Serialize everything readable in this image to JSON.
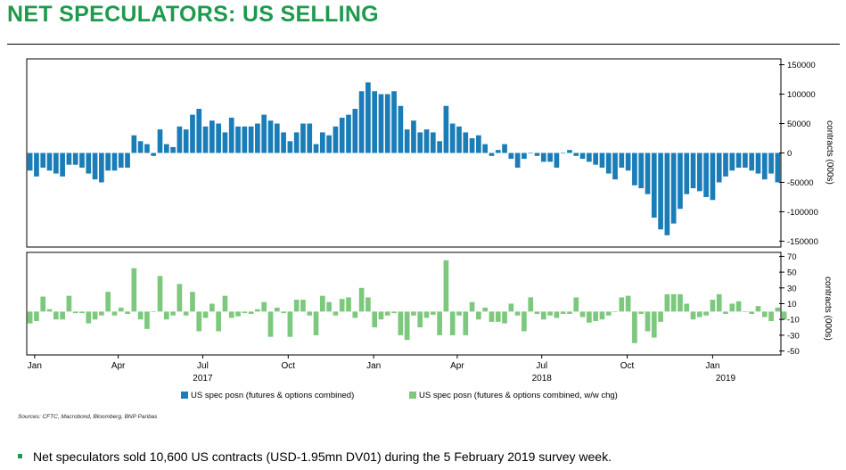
{
  "page": {
    "title": "NET SPECULATORS: US SELLING",
    "sources": "Sources: CFTC, Macrobond, Bloomberg, BNP Paribas",
    "bullet": "Net speculators sold 10,600 US contracts (USD-1.95mn DV01) during the 5 February 2019 survey week."
  },
  "colors": {
    "title": "#1d9a4c",
    "position_bars": "#1a7db8",
    "change_bars": "#7cc97e"
  },
  "chart_data": [
    {
      "type": "bar",
      "panel": "top",
      "x_start": "2016-12-27",
      "x_step_days": 7,
      "ylabel": "contracts (000s)",
      "ylim": [
        -160000,
        160000
      ],
      "yticks": [
        -150000,
        -100000,
        -50000,
        0,
        50000,
        100000,
        150000
      ],
      "ytick_labels": [
        "-150000",
        "-100000",
        "-50000",
        "0",
        "50000",
        "100000",
        "150000"
      ],
      "series": [
        {
          "name": "US spec posn (futures & options combined)",
          "values": [
            -30000,
            -40000,
            -25000,
            -30000,
            -35000,
            -40000,
            -20000,
            -20000,
            -25000,
            -35000,
            -45000,
            -50000,
            -30000,
            -30000,
            -25000,
            -25000,
            30000,
            20000,
            15000,
            -5000,
            40000,
            15000,
            10000,
            45000,
            40000,
            65000,
            75000,
            45000,
            55000,
            50000,
            35000,
            60000,
            45000,
            45000,
            45000,
            50000,
            65000,
            55000,
            50000,
            35000,
            20000,
            35000,
            50000,
            50000,
            15000,
            35000,
            30000,
            45000,
            60000,
            65000,
            75000,
            105000,
            120000,
            105000,
            100000,
            100000,
            105000,
            80000,
            40000,
            55000,
            35000,
            40000,
            35000,
            20000,
            80000,
            50000,
            45000,
            35000,
            25000,
            30000,
            15000,
            -5000,
            5000,
            15000,
            -10000,
            -25000,
            -10000,
            0,
            -5000,
            -15000,
            -15000,
            -25000,
            0,
            5000,
            -5000,
            -10000,
            -15000,
            -20000,
            -25000,
            -35000,
            -45000,
            -25000,
            -30000,
            -55000,
            -60000,
            -70000,
            -110000,
            -130000,
            -140000,
            -120000,
            -95000,
            -70000,
            -60000,
            -65000,
            -75000,
            -80000,
            -50000,
            -40000,
            -30000,
            -25000,
            -25000,
            -30000,
            -35000,
            -45000,
            -35000,
            -50000
          ]
        }
      ]
    },
    {
      "type": "bar",
      "panel": "bottom",
      "ylabel": "contracts (000s)",
      "ylim": [
        -55,
        75
      ],
      "yticks": [
        -50,
        -30,
        -10,
        10,
        30,
        50,
        70
      ],
      "ytick_labels": [
        "-50",
        "-30",
        "-10",
        "10",
        "30",
        "50",
        "70"
      ],
      "x_tick_labels": [
        "Jan",
        "Apr",
        "Jul",
        "Oct",
        "Jan",
        "Apr",
        "Jul",
        "Oct",
        "Jan"
      ],
      "x_tick_dates": [
        "2017-01-01",
        "2017-04-01",
        "2017-07-01",
        "2017-10-01",
        "2018-01-01",
        "2018-04-01",
        "2018-07-01",
        "2018-10-01",
        "2019-01-01"
      ],
      "year_labels": [
        {
          "label": "2017",
          "date": "2017-07-01"
        },
        {
          "label": "2018",
          "date": "2018-07-01"
        },
        {
          "label": "2019",
          "date": "2019-01-15"
        }
      ],
      "series": [
        {
          "name": "US spec posn (futures & options combined, w/w chg)",
          "values": [
            -15,
            -12,
            19,
            3,
            -10,
            -10,
            20,
            -2,
            -2,
            -15,
            -10,
            -5,
            25,
            -5,
            5,
            -3,
            55,
            -10,
            -22,
            0,
            45,
            -10,
            -5,
            35,
            -5,
            25,
            -25,
            -8,
            10,
            -25,
            20,
            -8,
            -6,
            -2,
            -3,
            3,
            12,
            -32,
            5,
            -2,
            -32,
            15,
            15,
            -5,
            -30,
            20,
            12,
            -5,
            16,
            18,
            -8,
            30,
            18,
            -20,
            -10,
            -5,
            -2,
            -30,
            -36,
            -5,
            -20,
            -8,
            -4,
            -30,
            65,
            -30,
            -5,
            -30,
            12,
            -10,
            5,
            -13,
            -13,
            -15,
            10,
            -5,
            -25,
            18,
            -3,
            -10,
            -5,
            -8,
            -3,
            -3,
            18,
            -7,
            -14,
            -12,
            -10,
            -5,
            0,
            18,
            20,
            -40,
            -3,
            -25,
            -33,
            -13,
            22,
            22,
            22,
            10,
            -10,
            -7,
            -5,
            15,
            22,
            -3,
            10,
            13,
            0,
            -3,
            7,
            -7,
            -12,
            5,
            -10
          ]
        }
      ]
    }
  ]
}
